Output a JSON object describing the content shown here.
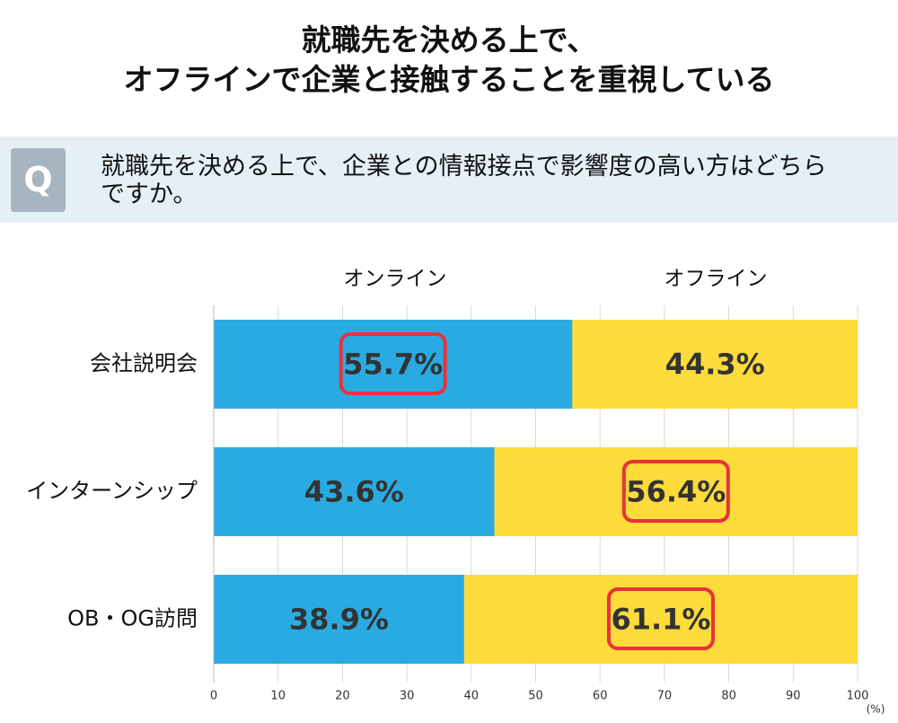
{
  "chart_data": {
    "type": "stacked-bar-horizontal",
    "title": [
      "就職先を決める上で、",
      "オフラインで企業と接触することを重視している"
    ],
    "question_mark": "Q",
    "question": "就職先を決める上で、企業との情報接点で影響度の高い方はどちらですか。",
    "categories": [
      "会社説明会",
      "インターンシップ",
      "OB・OG訪問"
    ],
    "series": [
      {
        "name": "オンライン",
        "color": "#29abe2",
        "values": [
          55.7,
          43.6,
          38.9
        ],
        "value_labels": [
          "55.7%",
          "43.6%",
          "38.9%"
        ],
        "highlight": [
          true,
          false,
          false
        ]
      },
      {
        "name": "オフライン",
        "color": "#fddb3a",
        "values": [
          44.3,
          56.4,
          61.1
        ],
        "value_labels": [
          "44.3%",
          "56.4%",
          "61.1%"
        ],
        "highlight": [
          false,
          true,
          true
        ]
      }
    ],
    "xlim": [
      0,
      100
    ],
    "xticks": [
      0,
      10,
      20,
      30,
      40,
      50,
      60,
      70,
      80,
      90,
      100
    ],
    "x_unit": "(%)",
    "grid": true,
    "highlight_color": "#e8323c"
  }
}
